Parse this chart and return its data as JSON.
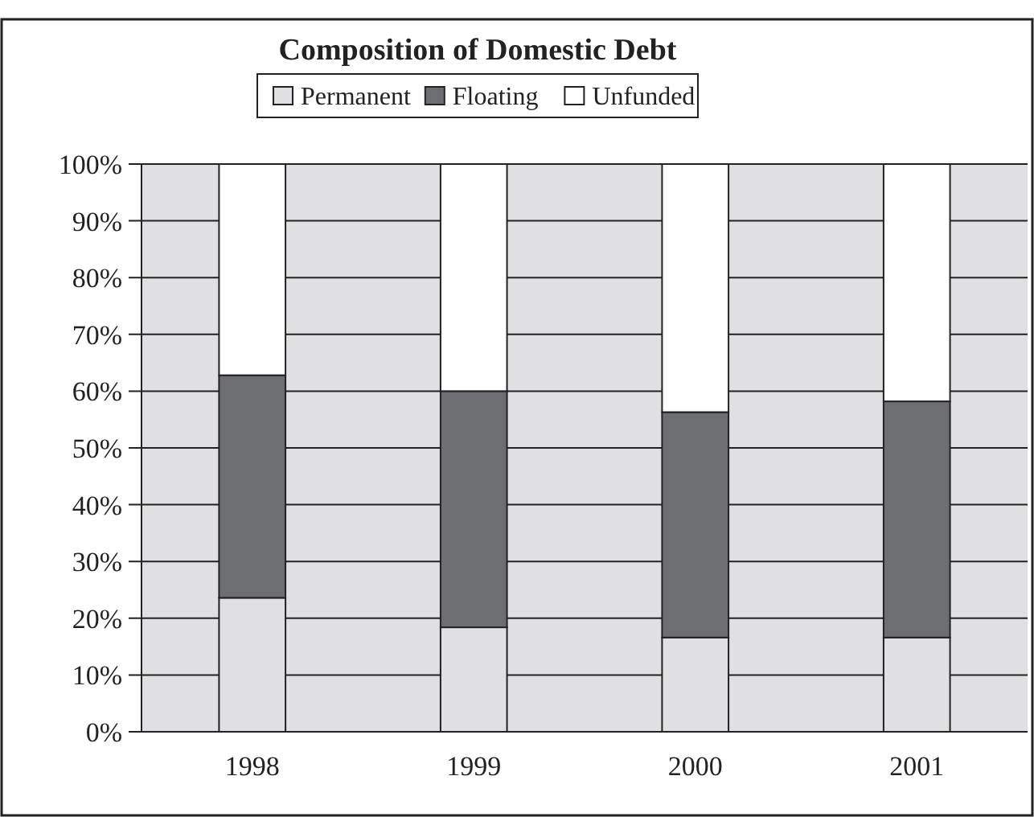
{
  "chart_data": {
    "type": "bar",
    "title": "Composition of Domestic Debt",
    "stacked": true,
    "categories": [
      "1998",
      "1999",
      "2000",
      "2001"
    ],
    "series": [
      {
        "name": "Permanent",
        "color": "#e0e0e2",
        "values": [
          23.6,
          18.4,
          16.6,
          16.6
        ]
      },
      {
        "name": "Floating",
        "color": "#6d6e71",
        "values": [
          39.2,
          41.6,
          39.7,
          41.6
        ]
      },
      {
        "name": "Unfunded",
        "color": "#ffffff",
        "values": [
          37.2,
          40,
          43.7,
          41.8
        ]
      }
    ],
    "ylim": [
      0,
      100
    ],
    "yticks": [
      {
        "value": 0,
        "label": "0%"
      },
      {
        "value": 10,
        "label": "10%"
      },
      {
        "value": 20,
        "label": "20%"
      },
      {
        "value": 30,
        "label": "30%"
      },
      {
        "value": 40,
        "label": "40%"
      },
      {
        "value": 50,
        "label": "50%"
      },
      {
        "value": 60,
        "label": "60%"
      },
      {
        "value": 70,
        "label": "70%"
      },
      {
        "value": 80,
        "label": "80%"
      },
      {
        "value": 90,
        "label": "90%"
      },
      {
        "value": 100,
        "label": "100%"
      }
    ],
    "grid": "y",
    "legend": "top"
  }
}
